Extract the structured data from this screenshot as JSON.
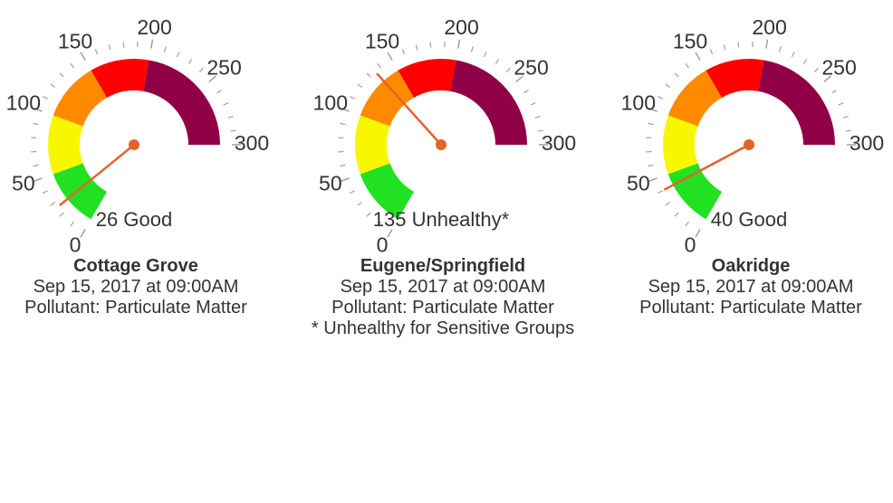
{
  "gauge_scale": {
    "min": 0,
    "max": 300,
    "tick_labels": [
      "0",
      "50",
      "100",
      "150",
      "200",
      "250",
      "300"
    ],
    "bands": [
      {
        "from": 0,
        "to": 50,
        "color": "#22e022"
      },
      {
        "from": 50,
        "to": 100,
        "color": "#f7f700"
      },
      {
        "from": 100,
        "to": 150,
        "color": "#ff8a00"
      },
      {
        "from": 150,
        "to": 200,
        "color": "#ff0000"
      },
      {
        "from": 200,
        "to": 300,
        "color": "#8f0046"
      }
    ],
    "needle_color": "#e3642a"
  },
  "chart_data": [
    {
      "type": "gauge",
      "value": 26,
      "reading_label": "26 Good",
      "station": "Cottage Grove",
      "date": "Sep 15, 2017 at 09:00AM",
      "pollutant": "Pollutant: Particulate Matter",
      "note": ""
    },
    {
      "type": "gauge",
      "value": 135,
      "reading_label": "135 Unhealthy*",
      "station": "Eugene/Springfield",
      "date": "Sep 15, 2017 at 09:00AM",
      "pollutant": "Pollutant: Particulate Matter",
      "note": "* Unhealthy for Sensitive Groups"
    },
    {
      "type": "gauge",
      "value": 40,
      "reading_label": "40 Good",
      "station": "Oakridge",
      "date": "Sep 15, 2017 at 09:00AM",
      "pollutant": "Pollutant: Particulate Matter",
      "note": ""
    }
  ]
}
